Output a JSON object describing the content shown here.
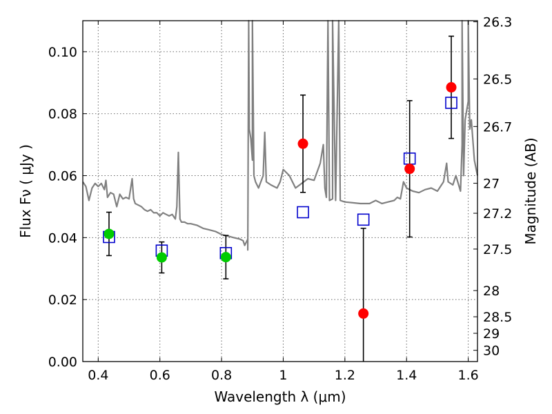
{
  "chart_data": {
    "type": "scatter",
    "xlabel": "Wavelength  λ (μm)",
    "ylabel": "Flux  Fν  ( μJy )",
    "y2label": "Magnitude (AB)",
    "xlim": [
      0.35,
      1.63
    ],
    "ylim": [
      0.0,
      0.11
    ],
    "grid": true,
    "x_ticks": [
      0.4,
      0.6,
      0.8,
      1.0,
      1.2,
      1.4,
      1.6
    ],
    "x_tick_labels": [
      "0.4",
      "0.6",
      "0.8",
      "1",
      "1.2",
      "1.4",
      "1.6"
    ],
    "y_ticks": [
      0.0,
      0.02,
      0.04,
      0.06,
      0.08,
      0.1
    ],
    "y_tick_labels": [
      "0.00",
      "0.02",
      "0.04",
      "0.06",
      "0.08",
      "0.10"
    ],
    "y2_ticks": [
      "26.3",
      "26.5",
      "26.7",
      "27",
      "27.2",
      "27.5",
      "28",
      "28.5",
      "29",
      "30"
    ],
    "colors": {
      "spectrum": "#808080",
      "observed_optical": "#00cc00",
      "observed_nir": "#ff0000",
      "model": "#0000cc",
      "errorbar": "#000000"
    },
    "series": [
      {
        "marker": "circle",
        "color": "#00cc00",
        "points": [
          {
            "x": 0.435,
            "y": 0.0412,
            "err": 0.007
          },
          {
            "x": 0.606,
            "y": 0.0336,
            "err": 0.005
          },
          {
            "x": 0.814,
            "y": 0.0337,
            "err": 0.007
          }
        ]
      },
      {
        "marker": "circle",
        "color": "#ff0000",
        "points": [
          {
            "x": 1.064,
            "y": 0.0703,
            "err": 0.0157
          },
          {
            "x": 1.26,
            "y": 0.0155,
            "err": 0.0275
          },
          {
            "x": 1.41,
            "y": 0.0622,
            "err": 0.022
          },
          {
            "x": 1.545,
            "y": 0.0885,
            "err": 0.0165
          }
        ]
      },
      {
        "marker": "square",
        "color": "#0000cc",
        "points": [
          {
            "x": 0.435,
            "y": 0.0402
          },
          {
            "x": 0.606,
            "y": 0.0358
          },
          {
            "x": 0.814,
            "y": 0.035
          },
          {
            "x": 1.064,
            "y": 0.0482
          },
          {
            "x": 1.26,
            "y": 0.0458
          },
          {
            "x": 1.41,
            "y": 0.0655
          },
          {
            "x": 1.545,
            "y": 0.0835
          }
        ]
      },
      {
        "type": "line",
        "color": "#808080",
        "points": [
          [
            0.35,
            0.058
          ],
          [
            0.36,
            0.0565
          ],
          [
            0.37,
            0.052
          ],
          [
            0.38,
            0.056
          ],
          [
            0.39,
            0.0575
          ],
          [
            0.4,
            0.0565
          ],
          [
            0.41,
            0.0575
          ],
          [
            0.42,
            0.0555
          ],
          [
            0.425,
            0.0585
          ],
          [
            0.43,
            0.053
          ],
          [
            0.44,
            0.0545
          ],
          [
            0.45,
            0.054
          ],
          [
            0.46,
            0.05
          ],
          [
            0.47,
            0.054
          ],
          [
            0.48,
            0.0525
          ],
          [
            0.49,
            0.053
          ],
          [
            0.5,
            0.0525
          ],
          [
            0.51,
            0.059
          ],
          [
            0.515,
            0.0525
          ],
          [
            0.52,
            0.051
          ],
          [
            0.53,
            0.0505
          ],
          [
            0.54,
            0.05
          ],
          [
            0.55,
            0.049
          ],
          [
            0.56,
            0.0485
          ],
          [
            0.57,
            0.049
          ],
          [
            0.58,
            0.048
          ],
          [
            0.59,
            0.048
          ],
          [
            0.6,
            0.047
          ],
          [
            0.61,
            0.048
          ],
          [
            0.62,
            0.0475
          ],
          [
            0.63,
            0.047
          ],
          [
            0.64,
            0.0475
          ],
          [
            0.65,
            0.046
          ],
          [
            0.655,
            0.05
          ],
          [
            0.66,
            0.0675
          ],
          [
            0.665,
            0.046
          ],
          [
            0.67,
            0.045
          ],
          [
            0.68,
            0.045
          ],
          [
            0.69,
            0.0445
          ],
          [
            0.7,
            0.0445
          ],
          [
            0.72,
            0.044
          ],
          [
            0.74,
            0.043
          ],
          [
            0.76,
            0.0425
          ],
          [
            0.78,
            0.042
          ],
          [
            0.8,
            0.041
          ],
          [
            0.82,
            0.0405
          ],
          [
            0.84,
            0.04
          ],
          [
            0.86,
            0.0395
          ],
          [
            0.87,
            0.039
          ],
          [
            0.875,
            0.0375
          ],
          [
            0.885,
            0.0395
          ],
          [
            0.89,
            0.075
          ],
          [
            0.895,
            0.072
          ],
          [
            0.9,
            0.065
          ],
          [
            0.905,
            0.06
          ],
          [
            0.91,
            0.058
          ],
          [
            0.92,
            0.056
          ],
          [
            0.935,
            0.06
          ],
          [
            0.94,
            0.074
          ],
          [
            0.945,
            0.058
          ],
          [
            0.96,
            0.057
          ],
          [
            0.98,
            0.056
          ],
          [
            0.99,
            0.058
          ],
          [
            1.0,
            0.062
          ],
          [
            1.02,
            0.06
          ],
          [
            1.04,
            0.056
          ],
          [
            1.06,
            0.0575
          ],
          [
            1.08,
            0.059
          ],
          [
            1.1,
            0.0585
          ],
          [
            1.12,
            0.064
          ],
          [
            1.13,
            0.07
          ],
          [
            1.135,
            0.056
          ],
          [
            1.14,
            0.053
          ],
          [
            1.15,
            0.052
          ],
          [
            1.16,
            0.0525
          ],
          [
            1.17,
            0.052
          ],
          [
            1.2,
            0.0515
          ],
          [
            1.25,
            0.051
          ],
          [
            1.28,
            0.051
          ],
          [
            1.3,
            0.052
          ],
          [
            1.32,
            0.051
          ],
          [
            1.34,
            0.0515
          ],
          [
            1.36,
            0.052
          ],
          [
            1.37,
            0.053
          ],
          [
            1.38,
            0.0525
          ],
          [
            1.39,
            0.058
          ],
          [
            1.4,
            0.056
          ],
          [
            1.42,
            0.055
          ],
          [
            1.44,
            0.0545
          ],
          [
            1.46,
            0.0555
          ],
          [
            1.48,
            0.056
          ],
          [
            1.5,
            0.055
          ],
          [
            1.52,
            0.058
          ],
          [
            1.53,
            0.064
          ],
          [
            1.535,
            0.058
          ],
          [
            1.55,
            0.057
          ],
          [
            1.56,
            0.06
          ],
          [
            1.58,
            0.07
          ],
          [
            1.59,
            0.078
          ],
          [
            1.6,
            0.084
          ],
          [
            1.61,
            0.078
          ],
          [
            1.62,
            0.065
          ],
          [
            1.63,
            0.06
          ]
        ],
        "spikes": [
          {
            "x": 0.885,
            "y": 0.036
          },
          {
            "x": 0.888,
            "y": 0.11
          },
          {
            "x": 0.9,
            "y": 0.11
          },
          {
            "x": 1.14,
            "y": 0.053
          },
          {
            "x": 1.145,
            "y": 0.11
          },
          {
            "x": 1.16,
            "y": 0.11
          },
          {
            "x": 1.17,
            "y": 0.052
          },
          {
            "x": 1.18,
            "y": 0.11
          },
          {
            "x": 1.185,
            "y": 0.052
          },
          {
            "x": 1.575,
            "y": 0.055
          },
          {
            "x": 1.58,
            "y": 0.11
          },
          {
            "x": 1.585,
            "y": 0.06
          },
          {
            "x": 1.6,
            "y": 0.11
          },
          {
            "x": 1.605,
            "y": 0.075
          }
        ]
      }
    ]
  }
}
